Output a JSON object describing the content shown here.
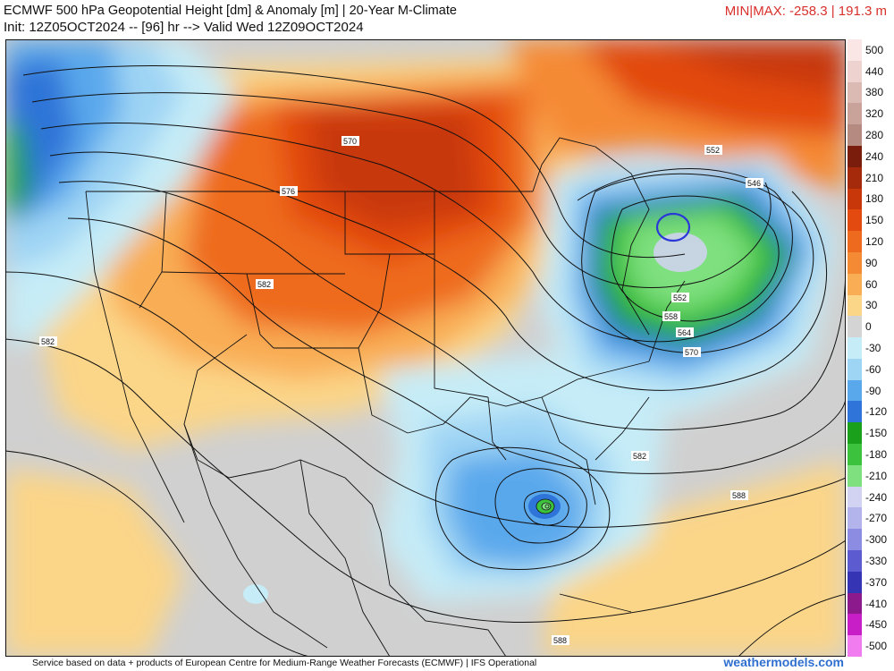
{
  "header": {
    "title_line1": "ECMWF 500 hPa Geopotential Height [dm] & Anomaly [m] | 20-Year M-Climate",
    "title_line2": "Init: 12Z05OCT2024 -- [96] hr --> Valid Wed 12Z09OCT2024",
    "minmax": "MIN|MAX: -258.3 | 191.3 m"
  },
  "colorbar": {
    "labels": [
      "500",
      "440",
      "380",
      "320",
      "280",
      "240",
      "210",
      "180",
      "150",
      "120",
      "90",
      "60",
      "30",
      "0",
      "-30",
      "-60",
      "-90",
      "-120",
      "-150",
      "-180",
      "-210",
      "-240",
      "-270",
      "-300",
      "-330",
      "-370",
      "-410",
      "-450",
      "-500"
    ],
    "colors": [
      "#fbe6e6",
      "#eed2cf",
      "#dcbab4",
      "#c9a29a",
      "#b58a80",
      "#7a1d0d",
      "#a52a0c",
      "#c8370a",
      "#e24a10",
      "#ee6a1e",
      "#f58a34",
      "#f9ad54",
      "#fbd588",
      "#d4d4d4",
      "#c6ecf7",
      "#9ed4f4",
      "#5aa8ec",
      "#2f74d8",
      "#1aa01a",
      "#3dc23d",
      "#7ee07e",
      "#d2d2f2",
      "#b4b4ec",
      "#8c8ce2",
      "#5c5cd0",
      "#3434b4",
      "#8c1a8c",
      "#c81ec8",
      "#f07cf0"
    ]
  },
  "map": {
    "contour_labels": [
      "570",
      "576",
      "582",
      "582",
      "552",
      "546",
      "552",
      "558",
      "564",
      "570",
      "582",
      "588",
      "588"
    ]
  },
  "footer": {
    "credit": "Service based on data + products of European Centre for Medium-Range Weather Forecasts (ECMWF) | IFS Operational",
    "brand": "weathermodels.com"
  }
}
